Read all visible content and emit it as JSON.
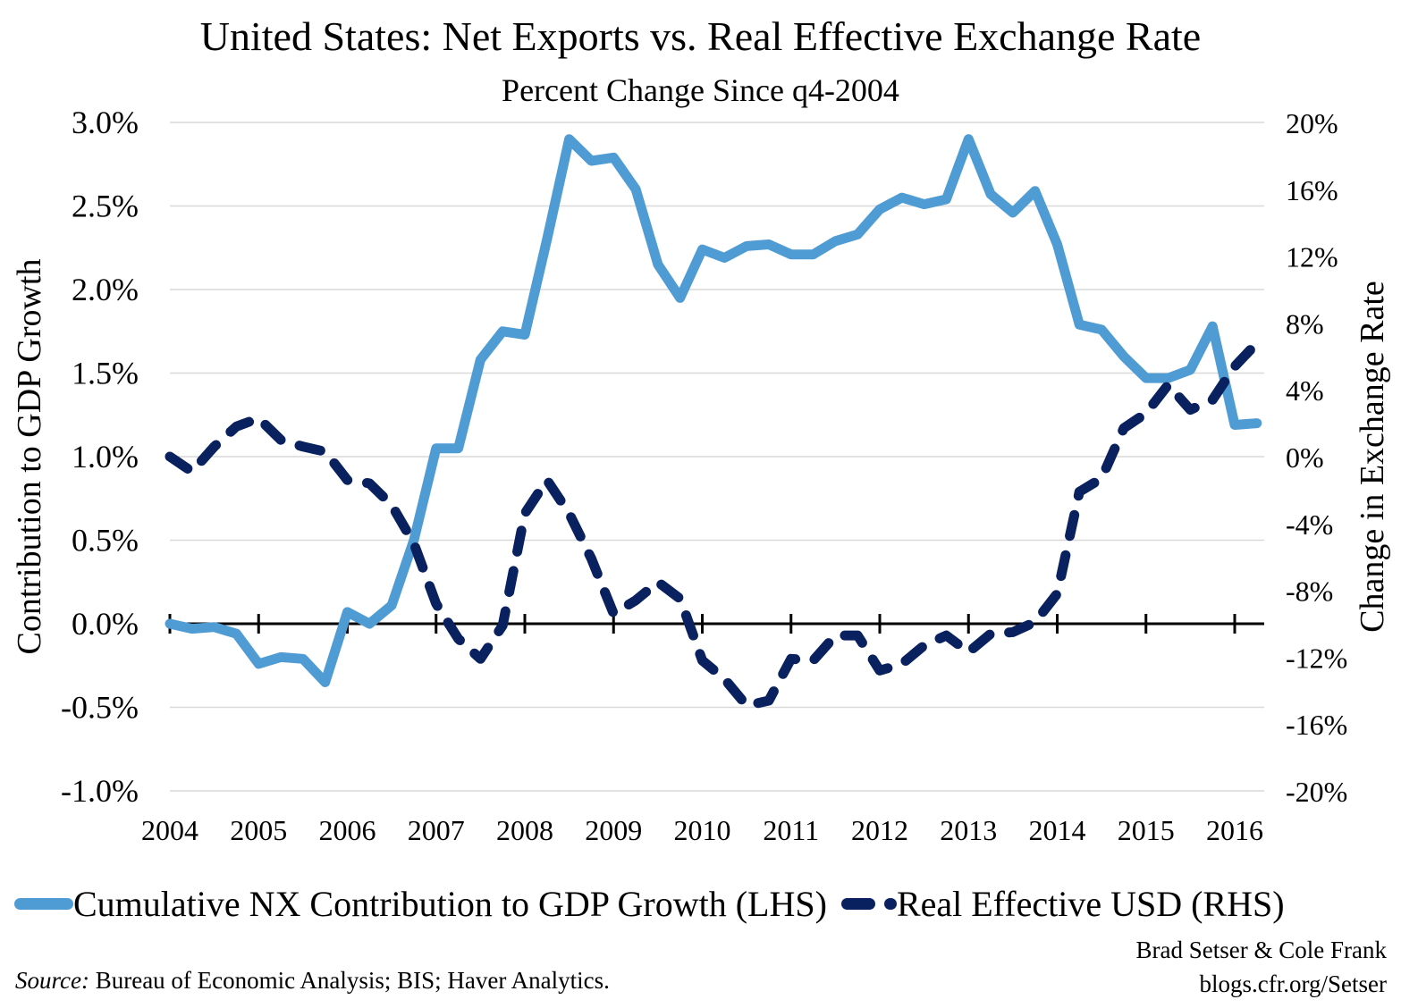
{
  "chart_data": {
    "type": "line",
    "title": "United States: Net Exports vs. Real Effective Exchange Rate",
    "subtitle": "Percent Change Since q4-2004",
    "ylabel_left": "Contribution to GDP Growth",
    "ylabel_right": "Change in Exchange Rate",
    "xlim": [
      2004,
      2016.33
    ],
    "ylim_left": [
      -1.0,
      3.0
    ],
    "ylim_right": [
      -20,
      20
    ],
    "grid": true,
    "legend_position": "bottom",
    "x_tick_labels": [
      "2004",
      "2005",
      "2006",
      "2007",
      "2008",
      "2009",
      "2010",
      "2011",
      "2012",
      "2013",
      "2014",
      "2015",
      "2016"
    ],
    "y_left_tick_labels": [
      "3.0%",
      "2.5%",
      "2.0%",
      "1.5%",
      "1.0%",
      "0.5%",
      "0.0%",
      "-0.5%",
      "-1.0%"
    ],
    "y_right_tick_labels": [
      "20%",
      "16%",
      "12%",
      "8%",
      "4%",
      "0%",
      "-4%",
      "-8%",
      "-12%",
      "-16%",
      "-20%"
    ],
    "x": [
      2004,
      2004.25,
      2004.5,
      2004.75,
      2005,
      2005.25,
      2005.5,
      2005.75,
      2006,
      2006.25,
      2006.5,
      2006.75,
      2007,
      2007.25,
      2007.5,
      2007.75,
      2008,
      2008.25,
      2008.5,
      2008.75,
      2009,
      2009.25,
      2009.5,
      2009.75,
      2010,
      2010.25,
      2010.5,
      2010.75,
      2011,
      2011.25,
      2011.5,
      2011.75,
      2012,
      2012.25,
      2012.5,
      2012.75,
      2013,
      2013.25,
      2013.5,
      2013.75,
      2014,
      2014.25,
      2014.5,
      2014.75,
      2015,
      2015.25,
      2015.5,
      2015.75,
      2016,
      2016.25
    ],
    "series": [
      {
        "name": "Cumulative NX Contribution to GDP Growth (LHS)",
        "axis": "left",
        "color": "#4f9cd4",
        "style": "solid",
        "values": [
          0.0,
          -0.03,
          -0.02,
          -0.06,
          -0.24,
          -0.2,
          -0.21,
          -0.35,
          0.07,
          0.0,
          0.11,
          0.5,
          1.05,
          1.05,
          1.58,
          1.75,
          1.73,
          2.3,
          2.9,
          2.77,
          2.79,
          2.6,
          2.15,
          1.95,
          2.24,
          2.19,
          2.26,
          2.27,
          2.21,
          2.21,
          2.29,
          2.33,
          2.48,
          2.55,
          2.51,
          2.54,
          2.9,
          2.57,
          2.46,
          2.59,
          2.27,
          1.79,
          1.76,
          1.6,
          1.47,
          1.47,
          1.52,
          1.78,
          1.19,
          1.2
        ]
      },
      {
        "name": "Real Effective USD (RHS)",
        "axis": "right",
        "color": "#0a2160",
        "style": "dashed",
        "values": [
          0.0,
          -0.9,
          0.6,
          1.8,
          2.3,
          1.0,
          0.6,
          0.3,
          -1.4,
          -1.6,
          -2.9,
          -5.2,
          -8.8,
          -10.9,
          -12.1,
          -10.1,
          -3.4,
          -1.4,
          -3.4,
          -6.1,
          -9.4,
          -8.6,
          -7.5,
          -8.5,
          -12.2,
          -13.3,
          -14.9,
          -14.6,
          -12.1,
          -12.2,
          -10.7,
          -10.7,
          -12.8,
          -12.4,
          -11.3,
          -10.7,
          -11.7,
          -10.6,
          -10.5,
          -9.9,
          -8.2,
          -2.1,
          -1.3,
          1.7,
          2.6,
          4.3,
          2.8,
          3.4,
          5.4,
          6.8
        ]
      }
    ]
  },
  "credit": {
    "line1": "Brad Setser & Cole Frank",
    "line2": "blogs.cfr.org/Setser"
  },
  "source": {
    "label": "Source:",
    "text": " Bureau of Economic Analysis; BIS; Haver Analytics."
  }
}
